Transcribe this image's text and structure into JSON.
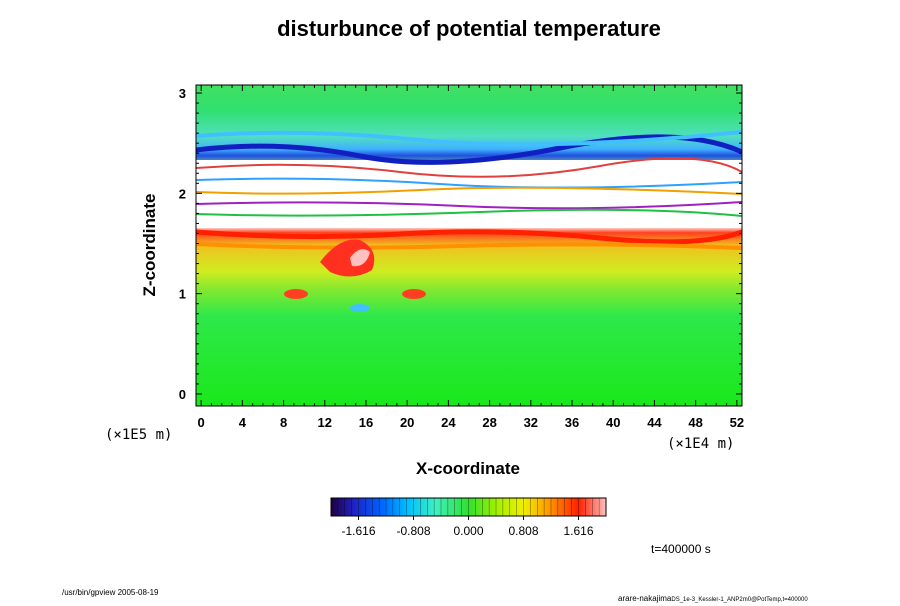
{
  "chart_data": {
    "type": "heatmap",
    "title": "disturbunce of potential temperature",
    "xlabel": "X-coordinate",
    "ylabel": "Z-coordinate",
    "x_ticks": [
      0,
      4,
      8,
      12,
      16,
      20,
      24,
      28,
      32,
      36,
      40,
      44,
      48,
      52
    ],
    "y_ticks": [
      0,
      1,
      2,
      3
    ],
    "x_scale": "(×1E4 m)",
    "y_scale": "(×1E5 m)",
    "xlim": [
      -0.5,
      52.5
    ],
    "ylim": [
      -0.12,
      3.08
    ],
    "colorbar": {
      "range": [
        -2.02,
        2.02
      ],
      "tick_values": [
        -1.616,
        -0.808,
        0.0,
        0.808,
        1.616
      ],
      "tick_labels": [
        "-1.616",
        "-0.808",
        "0.000",
        "0.808",
        "1.616"
      ]
    },
    "field_summary": [
      {
        "z_range": [
          0.0,
          0.9
        ],
        "value": 0.0,
        "description": "near-zero"
      },
      {
        "z_range": [
          1.2,
          1.65
        ],
        "value": 0.6
      },
      {
        "z_range": [
          1.6,
          1.7
        ],
        "value": 1.6
      },
      {
        "z_range": [
          1.7,
          2.35
        ],
        "value": "out of range (white)"
      },
      {
        "z_range": [
          2.5,
          2.65
        ],
        "value": -1.3
      }
    ],
    "time_label": "t=400000 s"
  },
  "footer": {
    "left": "/usr/bin/gpview 2005-08-19",
    "right": "arare-nakajima",
    "right_file": "DS_1e-3_Kessler-1_ANP2m0@PotTemp,t=400000"
  }
}
